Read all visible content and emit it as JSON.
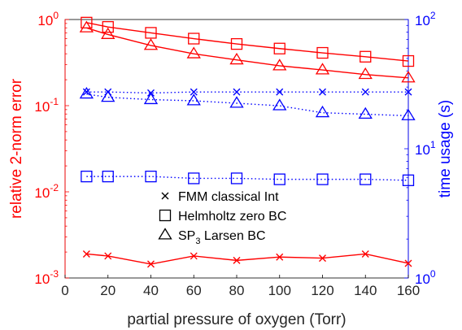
{
  "chart_data": {
    "type": "line",
    "xlabel": "partial pressure of oxygen (Torr)",
    "ylabel_left": "relative 2-norm error",
    "ylabel_right": "time usage (s)",
    "x_ticks": [
      "0",
      "20",
      "40",
      "60",
      "80",
      "100",
      "120",
      "140",
      "160"
    ],
    "x_range": [
      0,
      160
    ],
    "y_left_scale": "log",
    "y_left_range": [
      0.001,
      1
    ],
    "y_left_ticks": [
      {
        "base": "10",
        "exp": "-3",
        "value": 0.001
      },
      {
        "base": "10",
        "exp": "-2",
        "value": 0.01
      },
      {
        "base": "10",
        "exp": "-1",
        "value": 0.1
      },
      {
        "base": "10",
        "exp": "0",
        "value": 1
      }
    ],
    "y_right_scale": "log",
    "y_right_range": [
      1,
      100
    ],
    "y_right_ticks": [
      {
        "base": "10",
        "exp": "0",
        "value": 1
      },
      {
        "base": "10",
        "exp": "1",
        "value": 10
      },
      {
        "base": "10",
        "exp": "2",
        "value": 100
      }
    ],
    "left_color": "#ff0000",
    "right_color": "#0000ff",
    "x": [
      10,
      20,
      40,
      60,
      80,
      100,
      120,
      140,
      160
    ],
    "error_series": [
      {
        "marker": "square",
        "values": [
          0.92,
          0.82,
          0.7,
          0.6,
          0.52,
          0.46,
          0.41,
          0.37,
          0.33
        ]
      },
      {
        "marker": "triangle",
        "values": [
          0.8,
          0.67,
          0.5,
          0.4,
          0.34,
          0.29,
          0.26,
          0.23,
          0.21
        ]
      },
      {
        "marker": "x",
        "values": [
          0.0019,
          0.0018,
          0.00145,
          0.0018,
          0.0016,
          0.00175,
          0.0017,
          0.0019,
          0.00148
        ]
      }
    ],
    "time_series": [
      {
        "marker": "x",
        "values": [
          27.5,
          27.5,
          27.0,
          27.5,
          27.5,
          27.5,
          27.5,
          27.5,
          27.5
        ]
      },
      {
        "marker": "triangle",
        "values": [
          26.5,
          25.0,
          24.0,
          23.5,
          22.5,
          21.5,
          19.0,
          18.5,
          18.0
        ]
      },
      {
        "marker": "square",
        "values": [
          6.1,
          6.1,
          6.1,
          5.9,
          5.9,
          5.8,
          5.8,
          5.8,
          5.7
        ]
      }
    ],
    "legend": {
      "position": "lower-center",
      "entries": [
        {
          "marker": "x",
          "label": "FMM classical Int"
        },
        {
          "marker": "square",
          "label": "Helmholtz zero BC"
        },
        {
          "marker": "triangle",
          "label_main": "SP",
          "label_sub": "3",
          "label_tail": " Larsen BC"
        }
      ]
    }
  }
}
